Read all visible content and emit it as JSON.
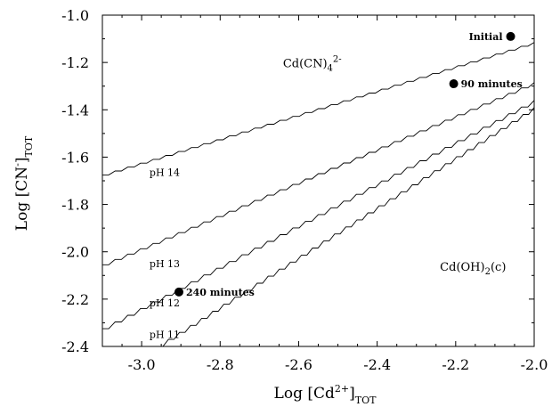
{
  "chart_data": {
    "type": "line",
    "xlabel": "Log [Cd",
    "xlabel_sup": "2+",
    "xlabel_close": "]",
    "xlabel_sub": "TOT",
    "ylabel": "Log [CN",
    "ylabel_sup": "-",
    "ylabel_close": "]",
    "ylabel_sub": "TOT",
    "xlim": [
      -3.1,
      -2.0
    ],
    "ylim": [
      -2.4,
      -1.0
    ],
    "x_ticks": [
      "-3.0",
      "-2.8",
      "-2.6",
      "-2.4",
      "-2.2",
      "-2.0"
    ],
    "x_tick_values": [
      -3.0,
      -2.8,
      -2.6,
      -2.4,
      -2.2,
      -2.0
    ],
    "y_ticks": [
      "-1.0",
      "-1.2",
      "-1.4",
      "-1.6",
      "-1.8",
      "-2.0",
      "-2.2",
      "-2.4"
    ],
    "y_tick_values": [
      -1.0,
      -1.2,
      -1.4,
      -1.6,
      -1.8,
      -2.0,
      -2.2,
      -2.4
    ],
    "series": [
      {
        "name": "pH 14",
        "x": [
          -3.1,
          -2.0
        ],
        "y": [
          -1.675,
          -1.115
        ],
        "label_at": [
          -2.98,
          -1.665
        ]
      },
      {
        "name": "pH 13",
        "x": [
          -3.1,
          -2.0
        ],
        "y": [
          -2.055,
          -1.285
        ],
        "label_at": [
          -2.98,
          -2.05
        ]
      },
      {
        "name": "pH 12",
        "x": [
          -3.1,
          -2.0
        ],
        "y": [
          -2.325,
          -1.36
        ],
        "label_at": [
          -2.98,
          -2.215
        ]
      },
      {
        "name": "pH 11",
        "x": [
          -2.96,
          -2.0
        ],
        "y": [
          -2.4,
          -1.39
        ],
        "label_at": [
          -2.98,
          -2.35
        ]
      }
    ],
    "points": [
      {
        "label": "Initial",
        "x": -2.06,
        "y": -1.09,
        "label_side": "left"
      },
      {
        "label": "90 minutes",
        "x": -2.205,
        "y": -1.29,
        "label_side": "right"
      },
      {
        "label": "240 minutes",
        "x": -2.905,
        "y": -2.17,
        "label_side": "right"
      }
    ],
    "regions": [
      {
        "label": "Cd(CN)",
        "sub": "4",
        "sup": "2-",
        "x": -2.64,
        "y": -1.22
      },
      {
        "label": "Cd(OH)",
        "sub": "2",
        "tail": "(c)",
        "x": -2.24,
        "y": -2.08
      }
    ],
    "grid": false
  }
}
